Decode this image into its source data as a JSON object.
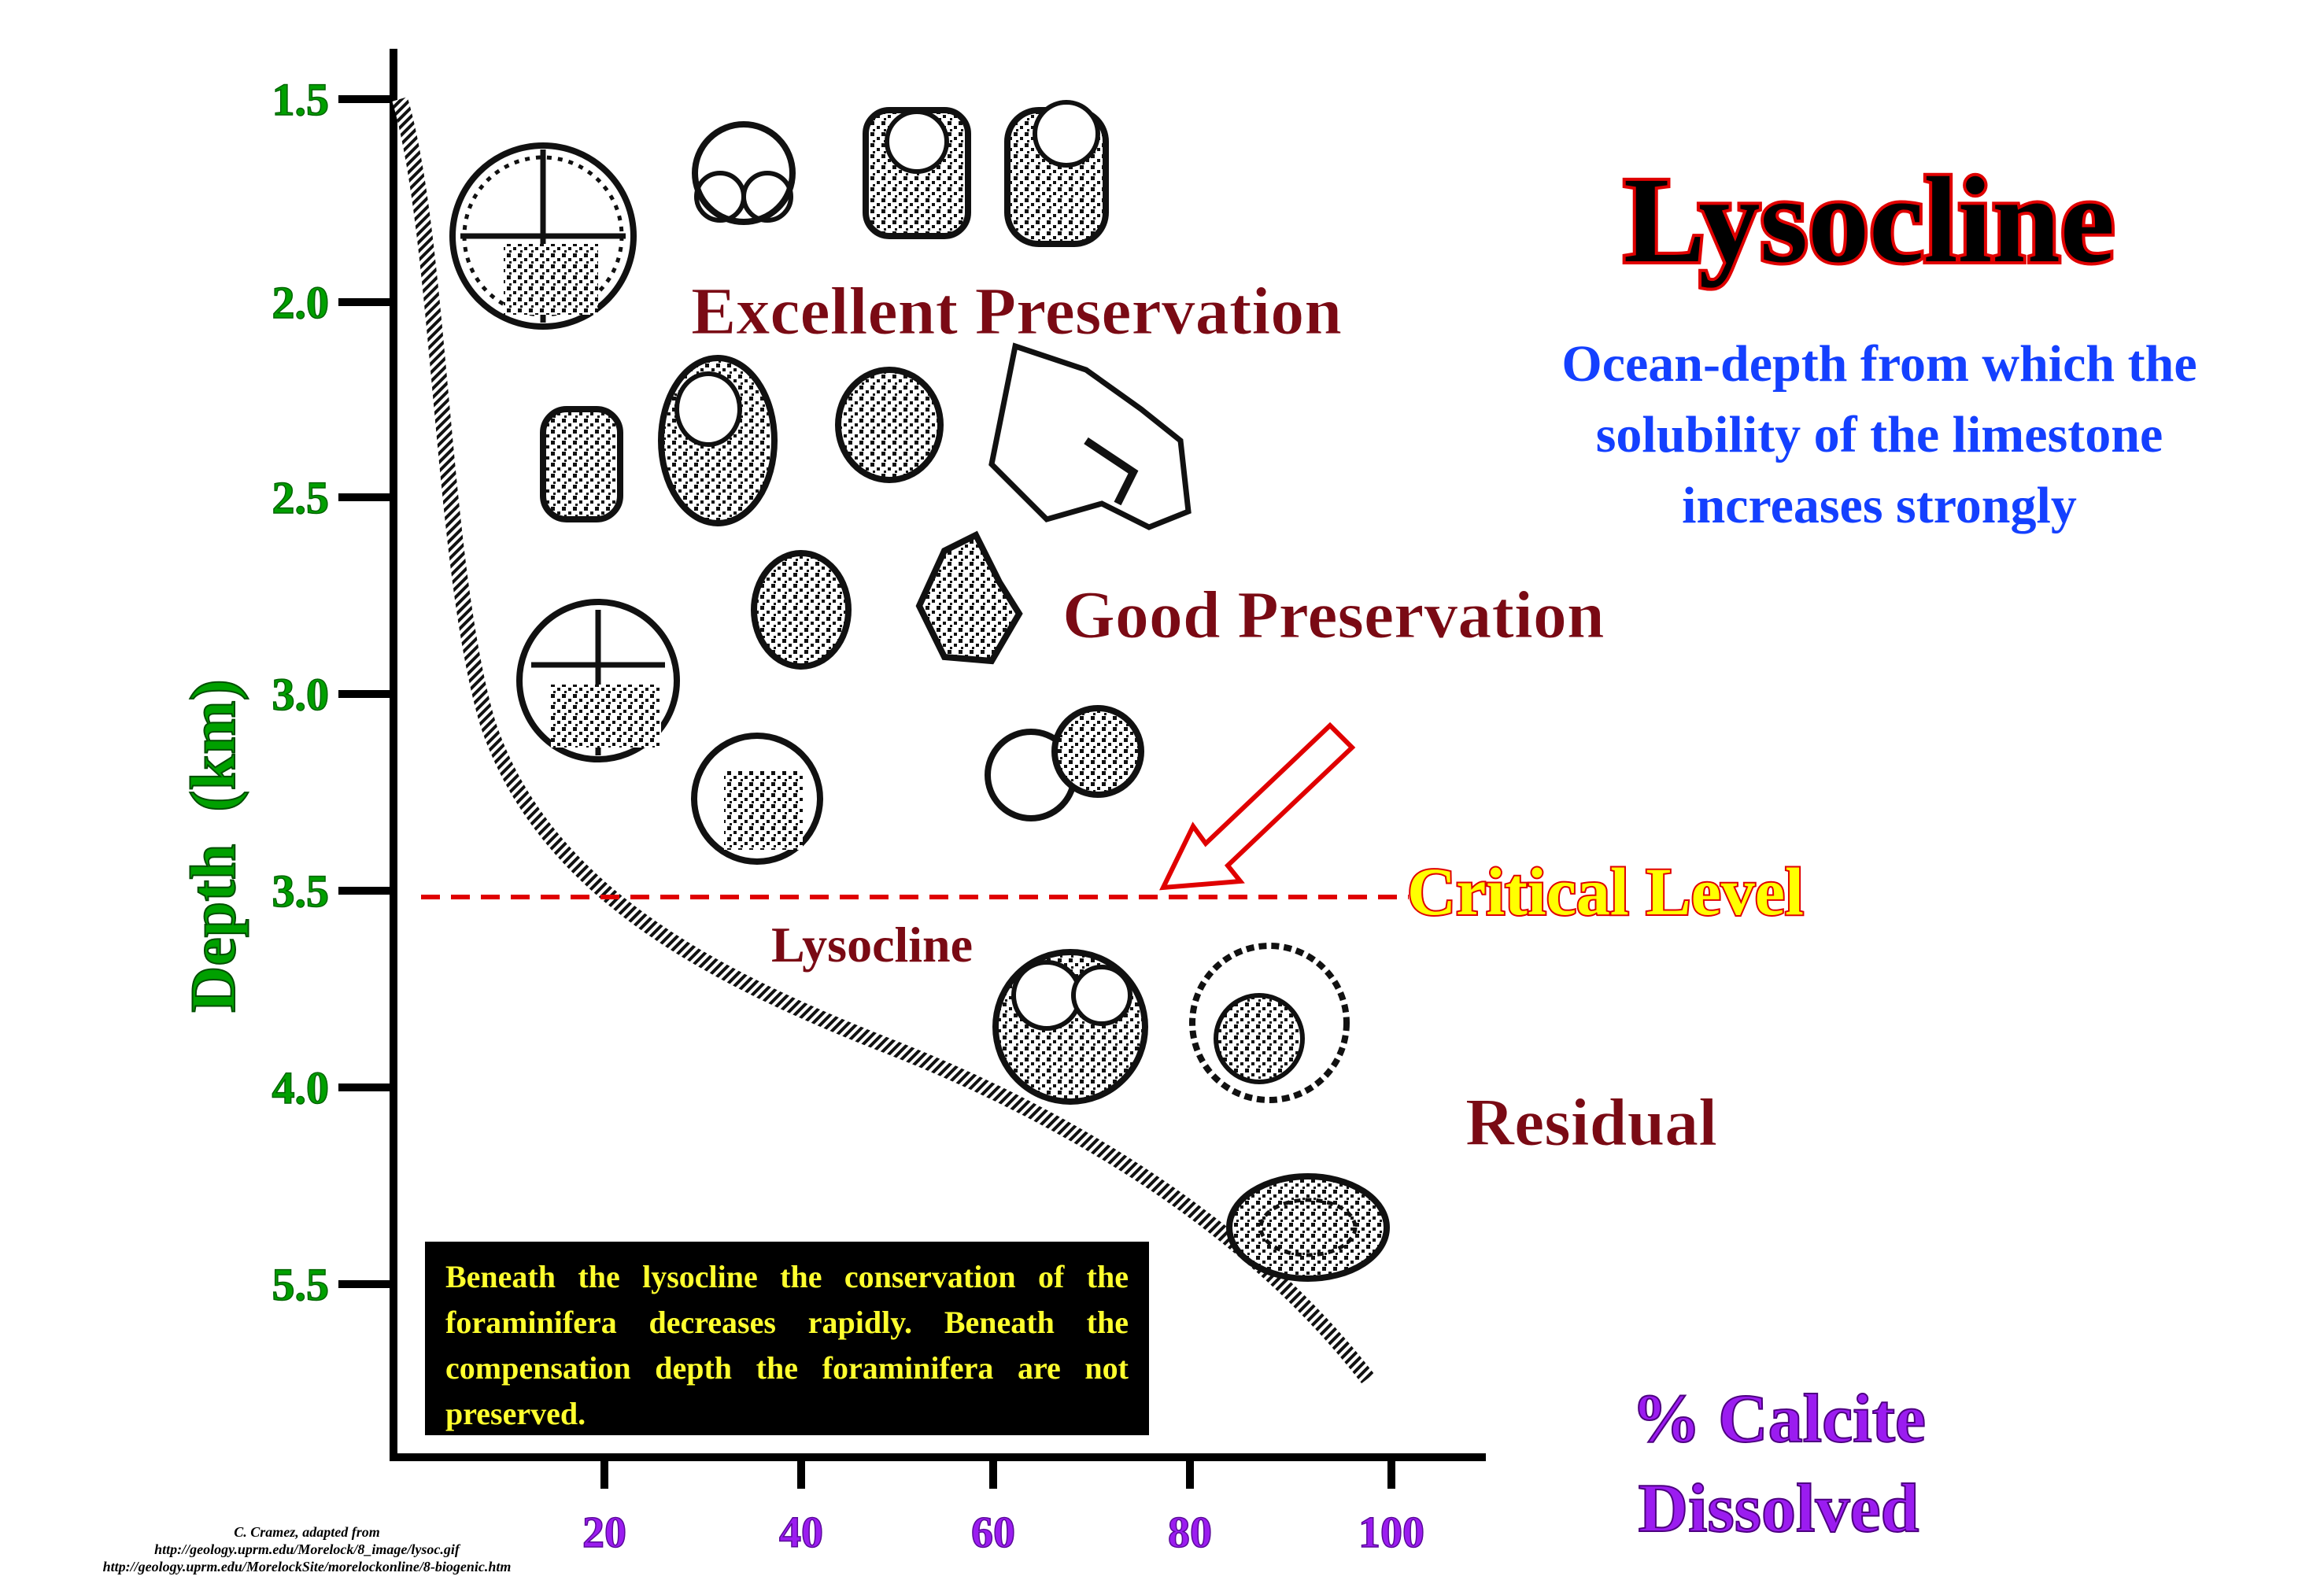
{
  "title": "Lysocline",
  "subtitle_lines": [
    "Ocean-depth from which the",
    "solubility of the limestone",
    "increases strongly"
  ],
  "y_axis": {
    "label": "Depth  (km)",
    "ticks": [
      "1.5",
      "2.0",
      "2.5",
      "3.0",
      "3.5",
      "4.0",
      "5.5"
    ]
  },
  "x_axis": {
    "label_lines": [
      "% Calcite",
      "Dissolved"
    ],
    "ticks": [
      "20",
      "40",
      "60",
      "80",
      "100"
    ]
  },
  "zones": {
    "excellent": "Excellent Preservation",
    "good": "Good Preservation",
    "residual": "Residual"
  },
  "critical_level": "Critical Level",
  "lysocline_label": "Lysocline",
  "note": "Beneath the lysocline the conservation of the foraminifera decreases rapidly. Beneath the compensation depth the foraminifera are not preserved.",
  "credit_lines": [
    "C. Cramez, adapted from",
    "http://geology.uprm.edu/Morelock/8_image/lysoc.gif",
    "http://geology.uprm.edu/MorelockSite/morelockonline/8-biogenic.htm"
  ],
  "colors": {
    "axis_labels": "#00a000",
    "x_axis": "#9b1cf0",
    "title": "#000000",
    "title_outline": "#e00000",
    "subtitle": "#1440ff",
    "zone_text": "#7a0a14",
    "critical": "#ffff00",
    "critical_outline": "#e00000",
    "dashed_line": "#e00000",
    "note_text": "#ffff2e"
  }
}
